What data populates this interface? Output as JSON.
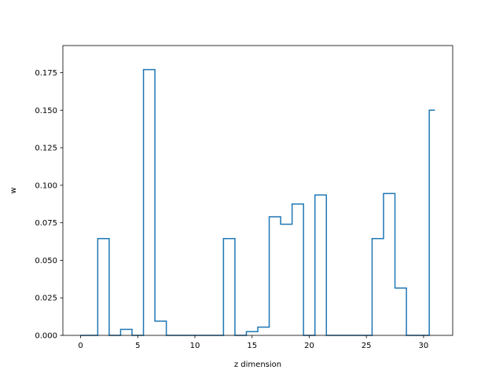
{
  "chart_data": {
    "type": "step",
    "title": "",
    "xlabel": "z dimension",
    "ylabel": "w",
    "xlim": [
      -1.55,
      32.55
    ],
    "ylim": [
      0,
      0.19305
    ],
    "x_ticks": [
      0,
      5,
      10,
      15,
      20,
      25,
      30
    ],
    "y_ticks": [
      0.0,
      0.025,
      0.05,
      0.075,
      0.1,
      0.125,
      0.15,
      0.175
    ],
    "x_tick_labels": [
      "0",
      "5",
      "10",
      "15",
      "20",
      "25",
      "30"
    ],
    "y_tick_labels": [
      "0.000",
      "0.025",
      "0.050",
      "0.075",
      "0.100",
      "0.125",
      "0.150",
      "0.175"
    ],
    "grid": false,
    "series": [
      {
        "color": "#1f77b4",
        "x": [
          0,
          1,
          2,
          3,
          4,
          5,
          6,
          7,
          8,
          9,
          10,
          11,
          12,
          13,
          14,
          15,
          16,
          17,
          18,
          19,
          20,
          21,
          22,
          23,
          24,
          25,
          26,
          27,
          28,
          29,
          30,
          31
        ],
        "values": [
          0,
          0,
          0.0645,
          0,
          0.004,
          0,
          0.177,
          0.0095,
          0,
          0,
          0,
          0,
          0,
          0.0645,
          0,
          0.0025,
          0.0055,
          0.079,
          0.074,
          0.0875,
          0,
          0.0935,
          0,
          0,
          0,
          0,
          0.0645,
          0.0945,
          0.0315,
          0,
          0,
          0.15
        ]
      }
    ]
  }
}
